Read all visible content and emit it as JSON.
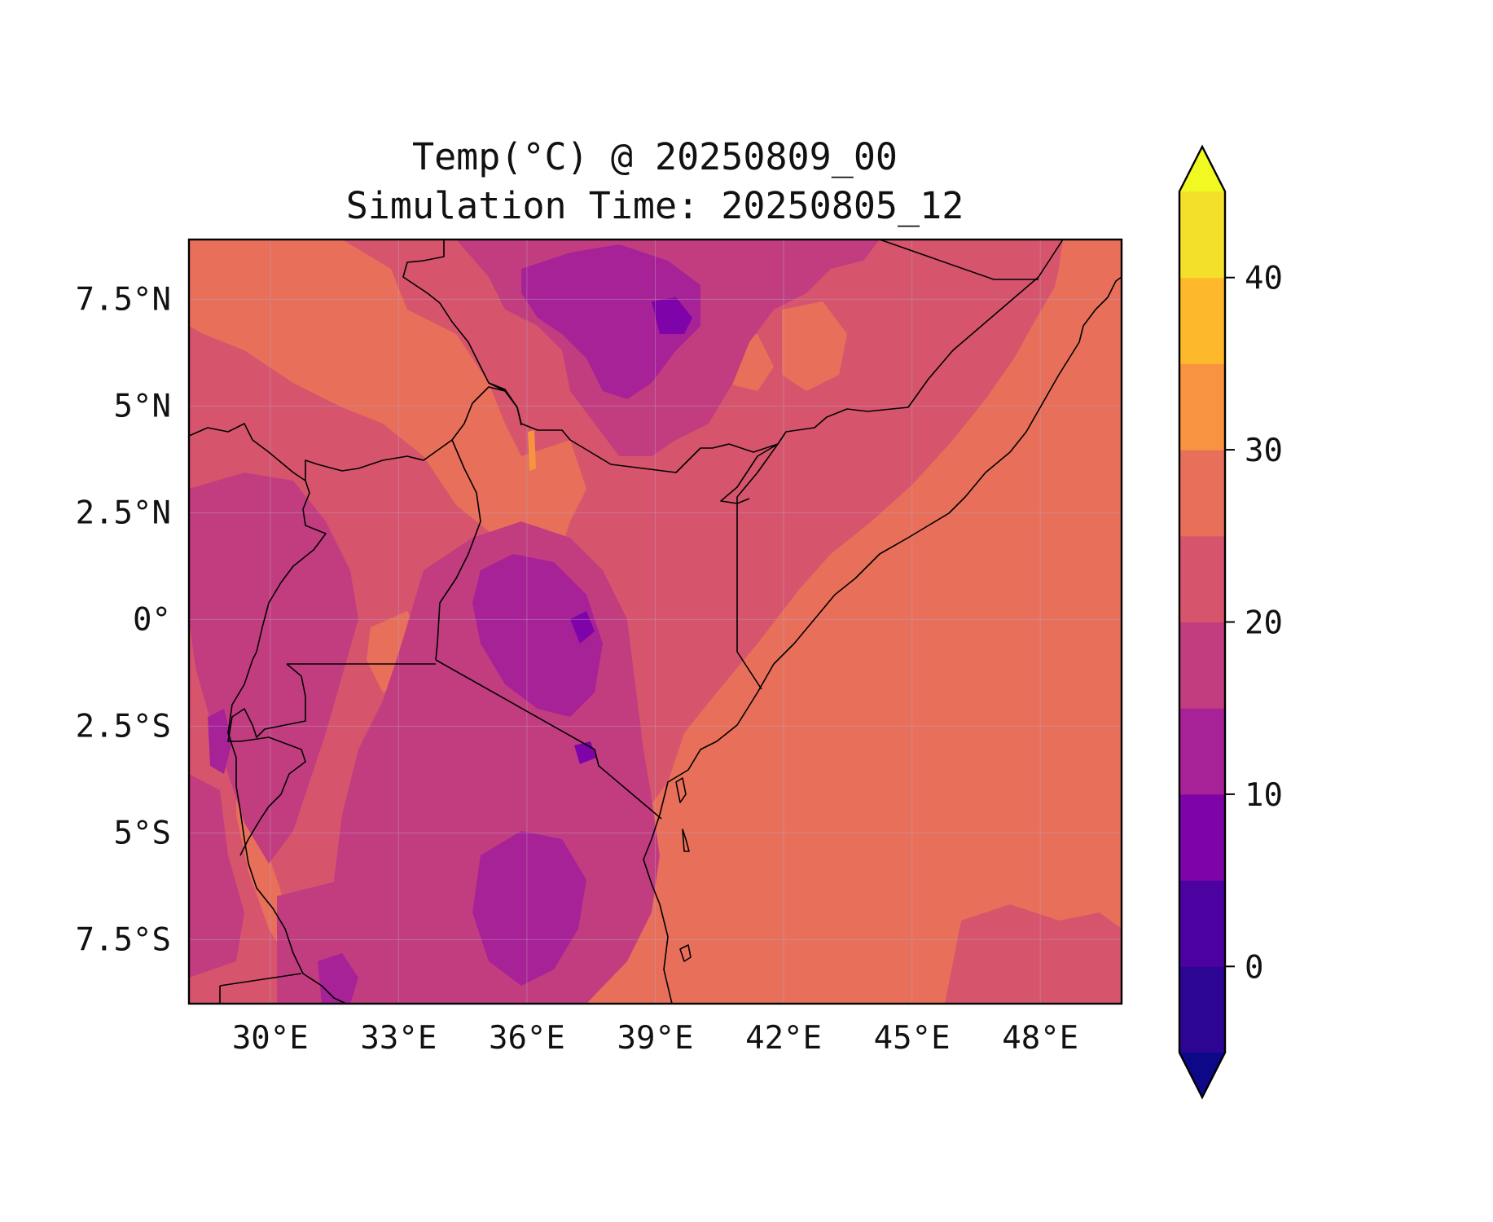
{
  "map": {
    "title_line1": "Temp(°C) @ 20250809_00",
    "title_line2": "Simulation Time: 20250805_12",
    "lon_ticks": [
      {
        "value": 30,
        "label": "30°E"
      },
      {
        "value": 33,
        "label": "33°E"
      },
      {
        "value": 36,
        "label": "36°E"
      },
      {
        "value": 39,
        "label": "39°E"
      },
      {
        "value": 42,
        "label": "42°E"
      },
      {
        "value": 45,
        "label": "45°E"
      },
      {
        "value": 48,
        "label": "48°E"
      }
    ],
    "lat_ticks": [
      {
        "value": 7.5,
        "label": "7.5°N"
      },
      {
        "value": 5,
        "label": "5°N"
      },
      {
        "value": 2.5,
        "label": "2.5°N"
      },
      {
        "value": 0,
        "label": "0°"
      },
      {
        "value": -2.5,
        "label": "2.5°S"
      },
      {
        "value": -5,
        "label": "5°S"
      },
      {
        "value": -7.5,
        "label": "7.5°S"
      }
    ],
    "lon_range": [
      28.1,
      49.9
    ],
    "lat_range": [
      -9.0,
      8.9
    ],
    "gridlines": true
  },
  "colorbar": {
    "levels": [
      -5,
      0,
      5,
      10,
      15,
      20,
      25,
      30,
      35,
      40,
      45
    ],
    "colors": [
      "#2d0594",
      "#4c02a1",
      "#7e03a8",
      "#a72197",
      "#c23d80",
      "#d6556d",
      "#e8705b",
      "#f89441",
      "#fdb82b",
      "#f3e02a"
    ],
    "under_color": "#0d0887",
    "over_color": "#f0f921",
    "extend": "both",
    "ticks": [
      {
        "value": 0,
        "label": "0"
      },
      {
        "value": 10,
        "label": "10"
      },
      {
        "value": 20,
        "label": "20"
      },
      {
        "value": 30,
        "label": "30"
      },
      {
        "value": 40,
        "label": "40"
      }
    ]
  }
}
